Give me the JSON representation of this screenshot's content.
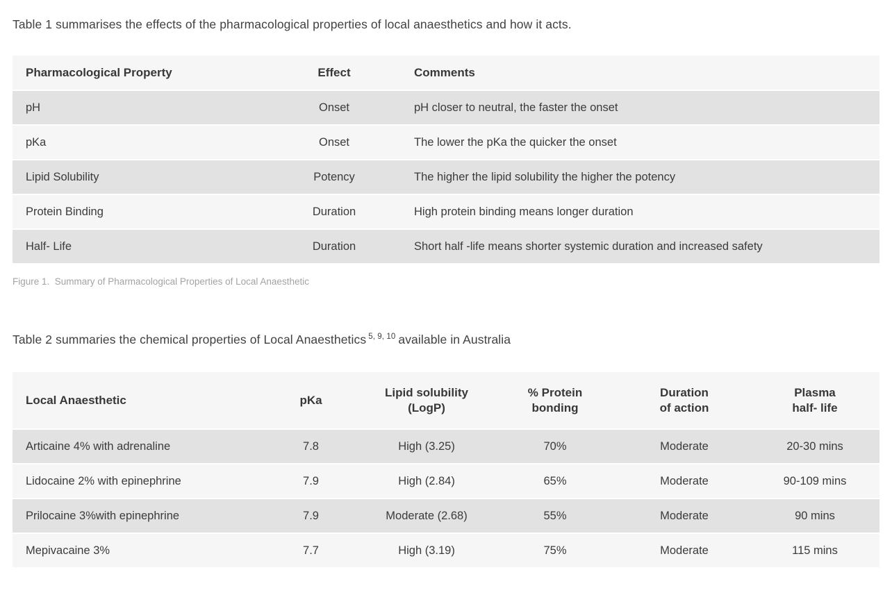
{
  "page": {
    "table1_intro": "Table 1 summarises the effects of the pharmacological properties of local anaesthetics and how it acts.",
    "figure1_caption": "Figure 1.  Summary of Pharmacological Properties of Local Anaesthetic",
    "table2_intro_prefix": "Table 2 summaries the chemical properties of Local Anaesthetics",
    "table2_intro_superscript": "5, 9, 10",
    "table2_intro_suffix": "available in Australia"
  },
  "table1": {
    "headers": [
      "Pharmacological Property",
      "Effect",
      "Comments"
    ],
    "rows": [
      [
        "pH",
        "Onset",
        "pH closer to neutral, the faster the onset"
      ],
      [
        "pKa",
        "Onset",
        "The lower the pKa the quicker the onset"
      ],
      [
        "Lipid Solubility",
        "Potency",
        "The higher the lipid solubility the higher the potency"
      ],
      [
        "Protein Binding",
        "Duration",
        "High protein binding means longer duration"
      ],
      [
        "Half- Life",
        "Duration",
        "Short half -life means shorter systemic duration and increased safety"
      ]
    ]
  },
  "table2": {
    "headers": [
      "Local Anaesthetic",
      "pKa",
      "Lipid solubility\n(LogP)",
      "% Protein\nbonding",
      "Duration\nof action",
      "Plasma\nhalf- life"
    ],
    "rows": [
      [
        "Articaine 4% with adrenaline",
        "7.8",
        "High (3.25)",
        "70%",
        "Moderate",
        "20-30 mins"
      ],
      [
        "Lidocaine 2% with epinephrine",
        "7.9",
        "High (2.84)",
        "65%",
        "Moderate",
        "90-109 mins"
      ],
      [
        "Prilocaine 3%with epinephrine",
        "7.9",
        "Moderate (2.68)",
        "55%",
        "Moderate",
        "90 mins"
      ],
      [
        "Mepivacaine 3%",
        "7.7",
        "High (3.19)",
        "75%",
        "Moderate",
        "115 mins"
      ]
    ]
  },
  "colors": {
    "row_dark": "#e2e2e3",
    "row_light": "#f5f6f5",
    "text": "#3b3b3b",
    "caption_text": "#a3a3a3"
  }
}
